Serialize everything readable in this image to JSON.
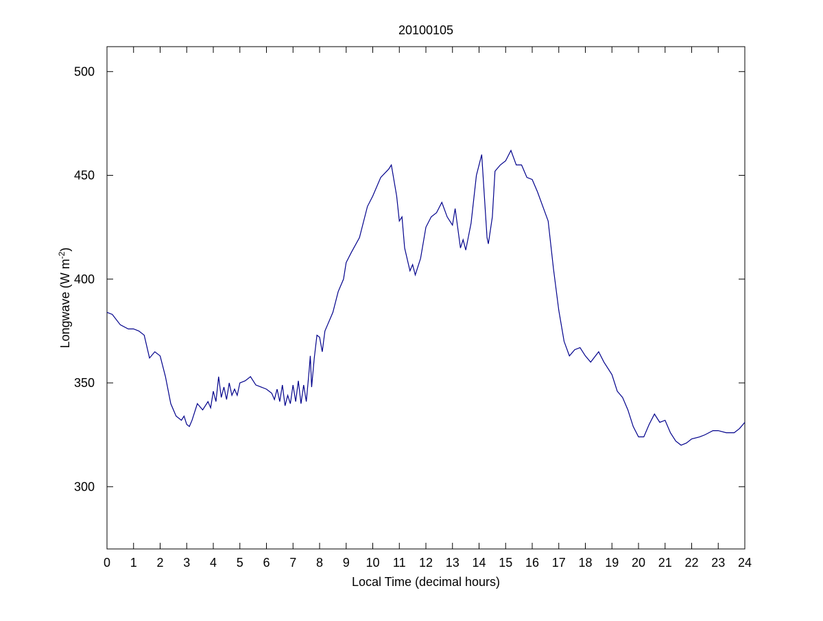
{
  "chart_data": {
    "type": "line",
    "title": "20100105",
    "xlabel": "Local Time (decimal hours)",
    "ylabel": {
      "text": "Longwave (W m",
      "superscript": "-2",
      "suffix": ")"
    },
    "xlim": [
      0,
      24
    ],
    "ylim": [
      270,
      512
    ],
    "xticks": [
      0,
      1,
      2,
      3,
      4,
      5,
      6,
      7,
      8,
      9,
      10,
      11,
      12,
      13,
      14,
      15,
      16,
      17,
      18,
      19,
      20,
      21,
      22,
      23,
      24
    ],
    "yticks": [
      300,
      350,
      400,
      450,
      500
    ],
    "x": [
      0,
      0.2,
      0.5,
      0.8,
      1.0,
      1.2,
      1.4,
      1.6,
      1.8,
      2.0,
      2.2,
      2.4,
      2.6,
      2.8,
      2.9,
      3.0,
      3.1,
      3.2,
      3.4,
      3.6,
      3.8,
      3.9,
      4.0,
      4.1,
      4.2,
      4.3,
      4.4,
      4.5,
      4.6,
      4.7,
      4.8,
      4.9,
      5.0,
      5.2,
      5.4,
      5.6,
      5.8,
      6.0,
      6.2,
      6.3,
      6.4,
      6.5,
      6.6,
      6.7,
      6.8,
      6.9,
      7.0,
      7.1,
      7.2,
      7.3,
      7.4,
      7.5,
      7.6,
      7.65,
      7.7,
      7.8,
      7.9,
      8.0,
      8.1,
      8.2,
      8.3,
      8.5,
      8.7,
      8.9,
      9.0,
      9.2,
      9.5,
      9.8,
      10.0,
      10.3,
      10.6,
      10.7,
      10.9,
      11.0,
      11.1,
      11.2,
      11.4,
      11.5,
      11.6,
      11.8,
      12.0,
      12.2,
      12.4,
      12.6,
      12.8,
      13.0,
      13.1,
      13.3,
      13.4,
      13.5,
      13.7,
      13.9,
      14.1,
      14.2,
      14.3,
      14.35,
      14.5,
      14.6,
      14.8,
      15.0,
      15.2,
      15.4,
      15.6,
      15.8,
      16.0,
      16.2,
      16.4,
      16.6,
      16.8,
      17.0,
      17.2,
      17.4,
      17.6,
      17.8,
      18.0,
      18.2,
      18.5,
      18.7,
      19.0,
      19.2,
      19.4,
      19.6,
      19.8,
      20.0,
      20.2,
      20.4,
      20.6,
      20.8,
      21.0,
      21.2,
      21.4,
      21.6,
      21.8,
      22.0,
      22.3,
      22.5,
      22.8,
      23.0,
      23.3,
      23.6,
      23.8,
      24.0
    ],
    "series": [
      {
        "color": "#00008b",
        "values": [
          384,
          383,
          378,
          376,
          376,
          375,
          373,
          362,
          365,
          363,
          353,
          340,
          334,
          332,
          334,
          330,
          329,
          332,
          340,
          337,
          341,
          338,
          346,
          341,
          353,
          343,
          348,
          342,
          350,
          344,
          347,
          344,
          350,
          351,
          353,
          349,
          348,
          347,
          345,
          342,
          347,
          341,
          349,
          339,
          344,
          340,
          349,
          341,
          351,
          340,
          349,
          341,
          355,
          363,
          348,
          362,
          373,
          372,
          365,
          375,
          378,
          384,
          394,
          400,
          408,
          413,
          420,
          435,
          440,
          449,
          453,
          455,
          440,
          428,
          430,
          415,
          404,
          407,
          402,
          410,
          425,
          430,
          432,
          437,
          430,
          426,
          434,
          415,
          419,
          414,
          427,
          450,
          460,
          440,
          420,
          417,
          430,
          452,
          455,
          457,
          462,
          455,
          455,
          449,
          448,
          442,
          435,
          428,
          405,
          385,
          370,
          363,
          366,
          367,
          363,
          360,
          365,
          360,
          354,
          346,
          343,
          337,
          329,
          324,
          324,
          330,
          335,
          331,
          332,
          326,
          322,
          320,
          321,
          323,
          324,
          325,
          327,
          327,
          326,
          326,
          328,
          331
        ]
      }
    ]
  }
}
